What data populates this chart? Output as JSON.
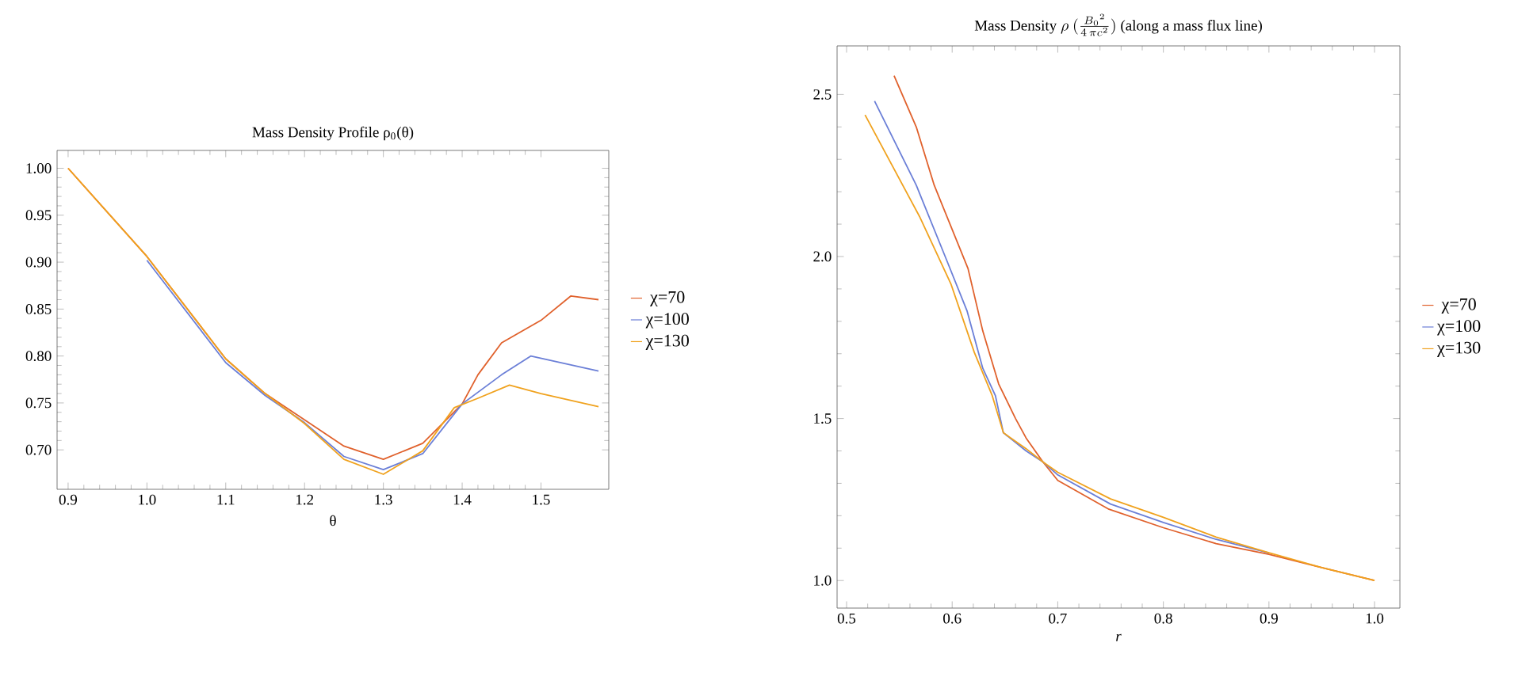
{
  "chart_data": [
    {
      "type": "line",
      "title": "Mass Density Profile ρ$_{0}$(θ)",
      "xlabel": "θ",
      "xlim": [
        0.886,
        1.586
      ],
      "ylim": [
        0.658,
        1.019
      ],
      "xticks": [
        0.9,
        {
          "value": 1.0,
          "label": "1.0"
        },
        1.1,
        1.2,
        1.3,
        1.4,
        1.5
      ],
      "yticks": [
        {
          "value": 0.7,
          "label": "0.70"
        },
        {
          "value": 0.75,
          "label": "0.75"
        },
        {
          "value": 0.8,
          "label": "0.80"
        },
        {
          "value": 0.85,
          "label": "0.85"
        },
        {
          "value": 0.9,
          "label": "0.90"
        },
        {
          "value": 0.95,
          "label": "0.95"
        },
        {
          "value": 1.0,
          "label": "1.00"
        }
      ],
      "grid": false,
      "legend": "right",
      "line_style": "solid",
      "series": [
        {
          "name": "χ=70",
          "color": "#e0612c",
          "x": [
            0.9,
            1.0,
            1.1,
            1.15,
            1.2,
            1.25,
            1.3,
            1.35,
            1.4,
            1.42,
            1.45,
            1.5,
            1.538,
            1.573
          ],
          "values": [
            1.0,
            0.906,
            0.797,
            0.76,
            0.732,
            0.704,
            0.69,
            0.707,
            0.749,
            0.78,
            0.814,
            0.838,
            0.864,
            0.86
          ]
        },
        {
          "name": "χ=100",
          "color": "#6b7fd7",
          "x": [
            1.0,
            1.1,
            1.15,
            1.2,
            1.25,
            1.3,
            1.35,
            1.4,
            1.45,
            1.487,
            1.573
          ],
          "values": [
            0.902,
            0.793,
            0.758,
            0.729,
            0.693,
            0.679,
            0.696,
            0.749,
            0.78,
            0.8,
            0.784
          ]
        },
        {
          "name": "χ=130",
          "color": "#f0a21e",
          "x": [
            0.9,
            1.0,
            1.1,
            1.15,
            1.2,
            1.25,
            1.3,
            1.35,
            1.39,
            1.42,
            1.46,
            1.5,
            1.573
          ],
          "values": [
            1.0,
            0.906,
            0.797,
            0.76,
            0.728,
            0.69,
            0.674,
            0.699,
            0.745,
            0.755,
            0.769,
            0.76,
            0.746
          ]
        }
      ]
    },
    {
      "type": "line",
      "title": "\\text{Mass Density }\\rho\\ (\\tfrac{B_0{}^2}{4\\,\\pi c^2})\\text{ (along a mass flux line)}",
      "xlabel": "*r*",
      "xlim": [
        0.491,
        1.024
      ],
      "ylim": [
        0.915,
        2.65
      ],
      "xticks": [
        0.5,
        0.6,
        0.7,
        0.8,
        0.9,
        {
          "value": 1.0,
          "label": "1.0"
        }
      ],
      "yticks": [
        {
          "value": 1.0,
          "label": "1.0"
        },
        1.5,
        {
          "value": 2.0,
          "label": "2.0"
        },
        2.5
      ],
      "grid": false,
      "legend": "right",
      "line_style": "solid",
      "series": [
        {
          "name": "χ=70",
          "color": "#e0612c",
          "x": [
            0.545,
            0.566,
            0.583,
            0.615,
            0.629,
            0.644,
            0.66,
            0.67,
            0.686,
            0.7,
            0.7485,
            0.8,
            0.85,
            0.9,
            0.95,
            1.0
          ],
          "values": [
            2.558,
            2.4,
            2.22,
            1.963,
            1.77,
            1.607,
            1.5,
            1.44,
            1.366,
            1.309,
            1.22,
            1.163,
            1.114,
            1.081,
            1.04,
            1.0
          ]
        },
        {
          "name": "χ=100",
          "color": "#6b7fd7",
          "x": [
            0.5265,
            0.566,
            0.594,
            0.614,
            0.629,
            0.641,
            0.6485,
            0.67,
            0.686,
            0.7,
            0.75,
            0.8,
            0.85,
            0.9
          ],
          "values": [
            2.48,
            2.22,
            1.995,
            1.833,
            1.655,
            1.57,
            1.456,
            1.4,
            1.366,
            1.326,
            1.236,
            1.179,
            1.127,
            1.085
          ]
        },
        {
          "name": "χ=130",
          "color": "#f0a21e",
          "x": [
            0.5175,
            0.569,
            0.599,
            0.621,
            0.638,
            0.6485,
            0.67,
            0.686,
            0.7,
            0.75,
            0.8,
            0.85,
            0.9,
            0.95,
            1.0
          ],
          "values": [
            2.437,
            2.124,
            1.914,
            1.704,
            1.57,
            1.456,
            1.407,
            1.366,
            1.334,
            1.252,
            1.195,
            1.134,
            1.086,
            1.04,
            1.0
          ]
        }
      ]
    }
  ]
}
